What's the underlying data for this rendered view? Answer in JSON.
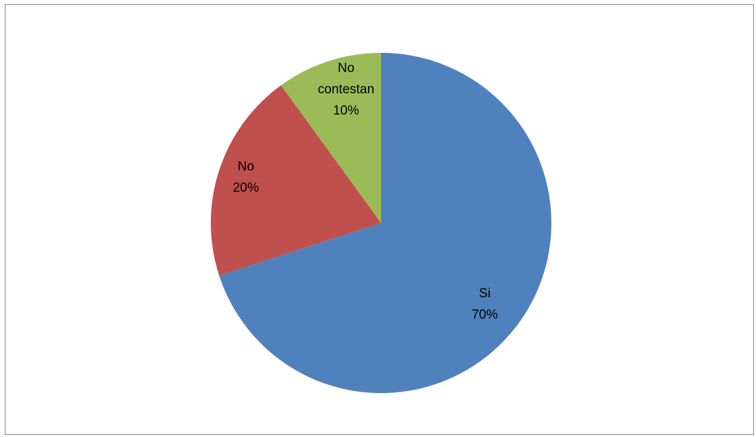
{
  "chart_data": {
    "type": "pie",
    "title": "",
    "slices": [
      {
        "name": "Si",
        "value": 70,
        "label": "Si",
        "percent_label": "70%",
        "color": "#4F81BD"
      },
      {
        "name": "No",
        "value": 20,
        "label": "No",
        "percent_label": "20%",
        "color": "#C0504D"
      },
      {
        "name": "No contestan",
        "value": 10,
        "label": "No contestan",
        "percent_label": "10%",
        "color": "#9BBB59"
      }
    ],
    "start_angle_deg": 0,
    "direction": "clockwise",
    "legend": "none"
  }
}
